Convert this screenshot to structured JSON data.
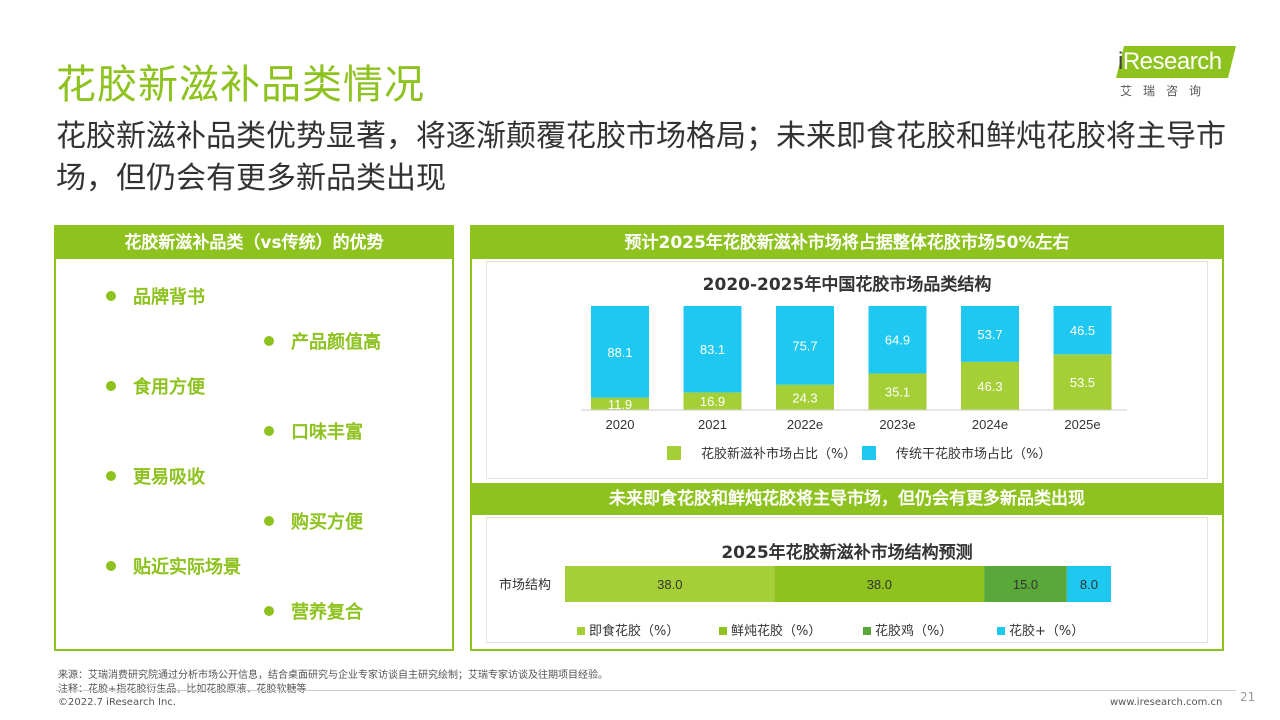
{
  "header": {
    "title": "花胶新滋补品类情况",
    "subtitle": "花胶新滋补品类优势显著，将逐渐颠覆花胶市场格局；未来即食花胶和鲜炖花胶将主导市场，但仍会有更多新品类出现"
  },
  "logo": {
    "brand_i": "i",
    "brand_rest": "Research",
    "sub": "艾瑞咨询"
  },
  "left_panel": {
    "heading": "花胶新滋补品类（vs传统）的优势",
    "items": [
      "品牌背书",
      "产品颜值高",
      "食用方便",
      "口味丰富",
      "更易吸收",
      "购买方便",
      "贴近实际场景",
      "营养复合"
    ]
  },
  "right_panel": {
    "heading_top": "预计2025年花胶新滋补市场将占据整体花胶市场50%左右",
    "heading_bottom": "未来即食花胶和鲜炖花胶将主导市场，但仍会有更多新品类出现"
  },
  "chart_data": [
    {
      "type": "bar",
      "stacked": true,
      "title": "2020-2025年中国花胶市场品类结构",
      "categories": [
        "2020",
        "2021",
        "2022e",
        "2023e",
        "2024e",
        "2025e"
      ],
      "series": [
        {
          "name": "花胶新滋补市场占比（%）",
          "color": "#a5cf36",
          "values": [
            11.9,
            16.9,
            24.3,
            35.1,
            46.3,
            53.5
          ]
        },
        {
          "name": "传统干花胶市场占比（%）",
          "color": "#1ec8f0",
          "values": [
            88.1,
            83.1,
            75.7,
            64.9,
            53.7,
            46.5
          ]
        }
      ],
      "ylim": [
        0,
        100
      ],
      "legend": "bottom"
    },
    {
      "type": "bar",
      "orientation": "horizontal",
      "stacked": true,
      "title": "2025年花胶新滋补市场结构预测",
      "categories": [
        "市场结构"
      ],
      "series": [
        {
          "name": "即食花胶（%）",
          "color": "#a5cf36",
          "values": [
            38.0
          ]
        },
        {
          "name": "鲜炖花胶（%）",
          "color": "#8dc21f",
          "values": [
            38.0
          ]
        },
        {
          "name": "花胶鸡（%）",
          "color": "#5aa73a",
          "values": [
            15.0
          ]
        },
        {
          "name": "花胶+（%）",
          "color": "#1ec8f0",
          "values": [
            8.0
          ]
        }
      ],
      "legend": "bottom"
    }
  ],
  "footer": {
    "source": "来源：艾瑞消费研究院通过分析市场公开信息，结合桌面研究与企业专家访谈自主研究绘制；艾瑞专家访谈及往期项目经验。",
    "note": "注释：花胶+指花胶衍生品，比如花胶原液、花胶软糖等",
    "copyright": "©2022.7 iResearch Inc.",
    "website": "www.iresearch.com.cn",
    "page": "21"
  }
}
